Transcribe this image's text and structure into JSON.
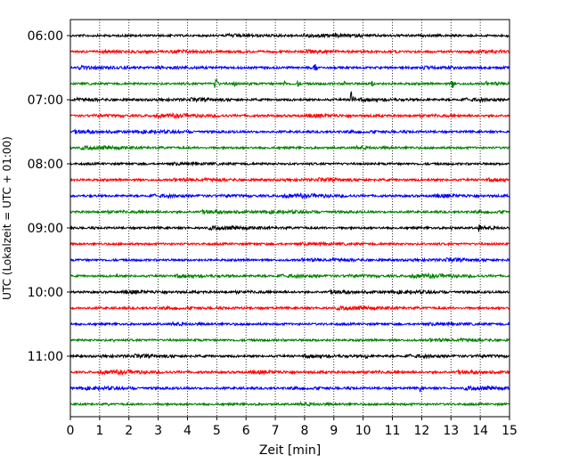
{
  "chart_data": {
    "type": "line",
    "title": "",
    "xlabel": "Zeit  [min]",
    "ylabel": "UTC (Lokalzeit = UTC + 01:00)",
    "xlim": [
      0,
      15
    ],
    "xticks": [
      0,
      1,
      2,
      3,
      4,
      5,
      6,
      7,
      8,
      9,
      10,
      11,
      12,
      13,
      14,
      15
    ],
    "ytick_labels": [
      "06:00",
      "07:00",
      "08:00",
      "09:00",
      "10:00",
      "11:00"
    ],
    "ytick_traces": [
      0,
      4,
      8,
      12,
      16,
      20
    ],
    "grid_x": true,
    "trace_interval_minutes": 15,
    "start_time": "06:00",
    "trace_count": 24,
    "color_cycle": [
      "#000000",
      "#ff0000",
      "#0000ff",
      "#008000"
    ],
    "events": [
      {
        "trace": 1,
        "x": 2.6,
        "amp": 0.25
      },
      {
        "trace": 2,
        "x": 8.35,
        "amp": 0.6
      },
      {
        "trace": 2,
        "x": 13.1,
        "amp": 0.2
      },
      {
        "trace": 3,
        "x": 4.95,
        "amp": 0.75
      },
      {
        "trace": 3,
        "x": 5.6,
        "amp": 0.35
      },
      {
        "trace": 3,
        "x": 6.1,
        "amp": 0.3
      },
      {
        "trace": 3,
        "x": 7.3,
        "amp": 0.35
      },
      {
        "trace": 3,
        "x": 7.75,
        "amp": 0.4
      },
      {
        "trace": 3,
        "x": 9.35,
        "amp": 0.35
      },
      {
        "trace": 3,
        "x": 10.3,
        "amp": 0.35
      },
      {
        "trace": 3,
        "x": 13.05,
        "amp": 0.6
      },
      {
        "trace": 3,
        "x": 14.2,
        "amp": 0.25
      },
      {
        "trace": 4,
        "x": 9.6,
        "amp": 0.95
      },
      {
        "trace": 8,
        "x": 4.3,
        "amp": 0.2
      },
      {
        "trace": 9,
        "x": 8.8,
        "amp": 0.2
      },
      {
        "trace": 12,
        "x": 13.95,
        "amp": 0.55
      },
      {
        "trace": 12,
        "x": 13.0,
        "amp": 0.25
      },
      {
        "trace": 15,
        "x": 1.6,
        "amp": 0.25
      },
      {
        "trace": 19,
        "x": 1.5,
        "amp": 0.2
      },
      {
        "trace": 20,
        "x": 10.1,
        "amp": 0.35
      },
      {
        "trace": 22,
        "x": 11.95,
        "amp": 0.35
      },
      {
        "trace": 23,
        "x": 1.3,
        "amp": 0.15
      }
    ]
  }
}
